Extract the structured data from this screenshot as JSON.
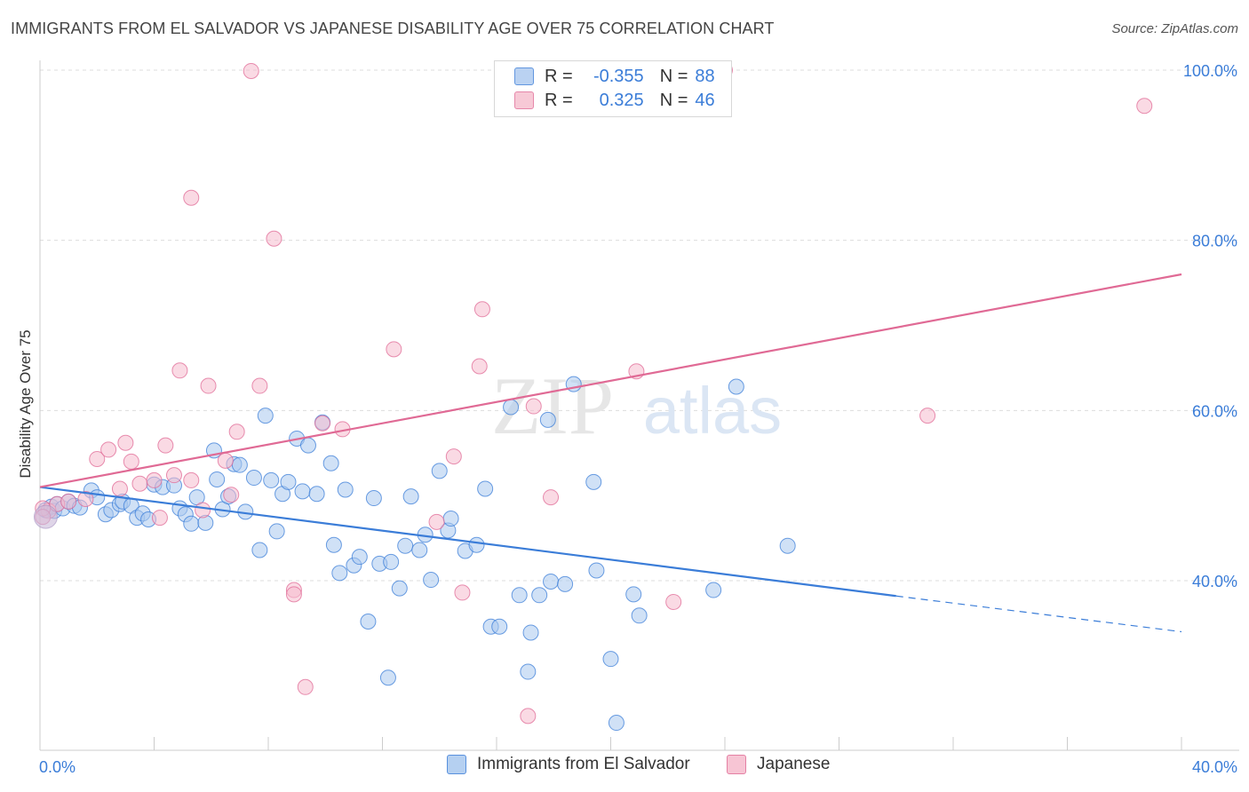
{
  "title": "IMMIGRANTS FROM EL SALVADOR VS JAPANESE DISABILITY AGE OVER 75 CORRELATION CHART",
  "source": "Source: ZipAtlas.com",
  "watermark": {
    "zip": "ZIP",
    "atlas": "atlas"
  },
  "colors": {
    "blue": "#3b7dd8",
    "blue_fill": "#a9c8ef",
    "pink": "#e06a95",
    "pink_fill": "#f6bccd",
    "grid": "#dddddd"
  },
  "legend": {
    "rows": [
      {
        "r_label": "R =",
        "r_value": "-0.355",
        "n_label": "N =",
        "n_value": "88"
      },
      {
        "r_label": "R =",
        "r_value": "0.325",
        "n_label": "N =",
        "n_value": "46"
      }
    ]
  },
  "chart_data": {
    "type": "scatter",
    "title": "IMMIGRANTS FROM EL SALVADOR VS JAPANESE DISABILITY AGE OVER 75 CORRELATION CHART",
    "xlabel": "",
    "ylabel": "Disability Age Over 75",
    "xlim": [
      0,
      40
    ],
    "ylim": [
      20,
      102
    ],
    "x_tick_labels": [
      "0.0%",
      "40.0%"
    ],
    "y_ticks": [
      40,
      60,
      80,
      100
    ],
    "y_tick_labels": [
      "40.0%",
      "60.0%",
      "80.0%",
      "100.0%"
    ],
    "grid": true,
    "series": [
      {
        "name": "Immigrants from El Salvador",
        "color": "#3b7dd8",
        "r": -0.355,
        "n": 88,
        "trend": {
          "x0": 0,
          "y0": 51.0,
          "x1": 30,
          "y1": 38.2,
          "dash_to_x": 40,
          "dash_to_y": 34.0
        },
        "points": [
          [
            0.2,
            48.3
          ],
          [
            0.4,
            48.7
          ],
          [
            0.5,
            48.2
          ],
          [
            0.6,
            49.0
          ],
          [
            0.8,
            48.5
          ],
          [
            1.0,
            49.3
          ],
          [
            1.2,
            48.8
          ],
          [
            1.4,
            48.6
          ],
          [
            1.8,
            50.6
          ],
          [
            2.0,
            49.8
          ],
          [
            2.3,
            47.8
          ],
          [
            2.5,
            48.3
          ],
          [
            2.8,
            49.0
          ],
          [
            2.9,
            49.3
          ],
          [
            3.2,
            48.8
          ],
          [
            3.4,
            47.4
          ],
          [
            3.6,
            47.9
          ],
          [
            3.8,
            47.2
          ],
          [
            4.0,
            51.3
          ],
          [
            4.3,
            51.0
          ],
          [
            4.7,
            51.2
          ],
          [
            4.9,
            48.5
          ],
          [
            5.1,
            47.8
          ],
          [
            5.3,
            46.7
          ],
          [
            5.5,
            49.8
          ],
          [
            5.8,
            46.8
          ],
          [
            6.1,
            55.3
          ],
          [
            6.2,
            51.9
          ],
          [
            6.4,
            48.4
          ],
          [
            6.6,
            49.9
          ],
          [
            6.8,
            53.7
          ],
          [
            7.0,
            53.6
          ],
          [
            7.2,
            48.1
          ],
          [
            7.5,
            52.1
          ],
          [
            7.7,
            43.6
          ],
          [
            7.9,
            59.4
          ],
          [
            8.1,
            51.8
          ],
          [
            8.3,
            45.8
          ],
          [
            8.5,
            50.2
          ],
          [
            8.7,
            51.6
          ],
          [
            9.0,
            56.7
          ],
          [
            9.2,
            50.5
          ],
          [
            9.4,
            55.9
          ],
          [
            9.7,
            50.2
          ],
          [
            9.9,
            58.6
          ],
          [
            10.2,
            53.8
          ],
          [
            10.3,
            44.2
          ],
          [
            10.5,
            40.9
          ],
          [
            10.7,
            50.7
          ],
          [
            11.0,
            41.8
          ],
          [
            11.2,
            42.8
          ],
          [
            11.5,
            35.2
          ],
          [
            11.7,
            49.7
          ],
          [
            11.9,
            42.0
          ],
          [
            12.2,
            28.6
          ],
          [
            12.3,
            42.2
          ],
          [
            12.6,
            39.1
          ],
          [
            12.8,
            44.1
          ],
          [
            13.0,
            49.9
          ],
          [
            13.3,
            43.6
          ],
          [
            13.5,
            45.4
          ],
          [
            13.7,
            40.1
          ],
          [
            14.0,
            52.9
          ],
          [
            14.3,
            45.9
          ],
          [
            14.4,
            47.3
          ],
          [
            14.9,
            43.5
          ],
          [
            15.3,
            44.2
          ],
          [
            15.6,
            50.8
          ],
          [
            15.8,
            34.6
          ],
          [
            16.1,
            34.6
          ],
          [
            16.5,
            60.4
          ],
          [
            16.8,
            38.3
          ],
          [
            17.1,
            29.3
          ],
          [
            17.2,
            33.9
          ],
          [
            17.5,
            38.3
          ],
          [
            17.8,
            58.9
          ],
          [
            17.9,
            39.9
          ],
          [
            18.4,
            39.6
          ],
          [
            18.7,
            63.1
          ],
          [
            19.4,
            51.6
          ],
          [
            19.5,
            41.2
          ],
          [
            20.0,
            30.8
          ],
          [
            20.2,
            23.3
          ],
          [
            20.8,
            38.4
          ],
          [
            21.0,
            35.9
          ],
          [
            23.6,
            38.9
          ],
          [
            24.4,
            62.8
          ],
          [
            26.2,
            44.1
          ]
        ]
      },
      {
        "name": "Japanese",
        "color": "#e06a95",
        "r": 0.325,
        "n": 46,
        "trend": {
          "x0": 0,
          "y0": 51.0,
          "x1": 40,
          "y1": 76.0
        },
        "points": [
          [
            0.3,
            48.2
          ],
          [
            0.6,
            49.0
          ],
          [
            1.0,
            49.3
          ],
          [
            1.6,
            49.6
          ],
          [
            2.0,
            54.3
          ],
          [
            2.4,
            55.4
          ],
          [
            2.8,
            50.8
          ],
          [
            3.0,
            56.2
          ],
          [
            3.2,
            54.0
          ],
          [
            3.5,
            51.4
          ],
          [
            4.0,
            51.8
          ],
          [
            4.2,
            47.4
          ],
          [
            4.4,
            55.9
          ],
          [
            4.7,
            52.4
          ],
          [
            4.9,
            64.7
          ],
          [
            5.3,
            51.8
          ],
          [
            5.3,
            85.0
          ],
          [
            5.7,
            48.3
          ],
          [
            5.9,
            62.9
          ],
          [
            6.5,
            54.1
          ],
          [
            6.7,
            50.1
          ],
          [
            6.9,
            57.5
          ],
          [
            7.4,
            99.9
          ],
          [
            7.7,
            62.9
          ],
          [
            8.2,
            80.2
          ],
          [
            8.9,
            38.9
          ],
          [
            8.9,
            38.4
          ],
          [
            9.3,
            27.5
          ],
          [
            9.9,
            58.5
          ],
          [
            10.6,
            57.8
          ],
          [
            12.4,
            67.2
          ],
          [
            13.9,
            46.9
          ],
          [
            14.5,
            54.6
          ],
          [
            14.8,
            38.6
          ],
          [
            15.4,
            65.2
          ],
          [
            15.5,
            71.9
          ],
          [
            17.1,
            24.1
          ],
          [
            17.3,
            60.5
          ],
          [
            17.9,
            49.8
          ],
          [
            20.9,
            64.6
          ],
          [
            22.2,
            37.5
          ],
          [
            24.0,
            100.0
          ],
          [
            31.1,
            59.4
          ],
          [
            38.7,
            95.8
          ],
          [
            0.1,
            48.5
          ],
          [
            0.1,
            47.5
          ]
        ]
      }
    ]
  },
  "bottom_legend": {
    "items": [
      {
        "label": "Immigrants from El Salvador"
      },
      {
        "label": "Japanese"
      }
    ]
  }
}
